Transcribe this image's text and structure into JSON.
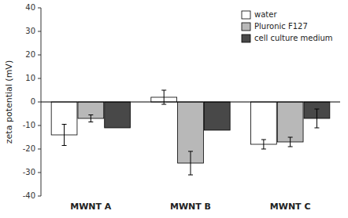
{
  "chart_data": {
    "type": "bar",
    "categories": [
      "MWNT A",
      "MWNT B",
      "MWNT C"
    ],
    "series": [
      {
        "name": "water",
        "color": "#ffffff",
        "values": [
          -14,
          2,
          -18
        ],
        "errors": [
          4.5,
          3,
          2
        ]
      },
      {
        "name": "Pluronic F127",
        "color": "#b8b8b8",
        "values": [
          -7,
          -26,
          -17
        ],
        "errors": [
          1.5,
          5,
          2
        ]
      },
      {
        "name": "cell culture medium",
        "color": "#484848",
        "values": [
          -11,
          -12,
          -7
        ],
        "errors": [
          0,
          0,
          4
        ]
      }
    ],
    "ylabel": "zeta potential (mV)",
    "ylim": [
      -40,
      40
    ],
    "yticks": [
      -40,
      -30,
      -20,
      -10,
      0,
      10,
      20,
      30,
      40
    ],
    "legend": "upper right",
    "grid": false
  }
}
